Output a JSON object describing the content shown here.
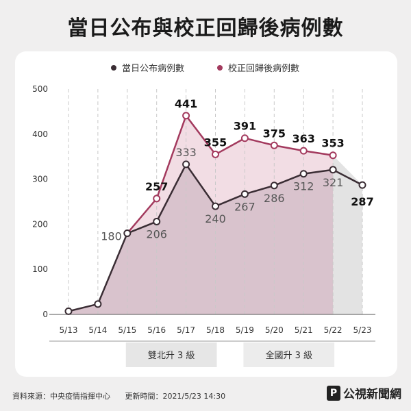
{
  "title": "當日公布與校正回歸後病例數",
  "footer": {
    "source": "資料來源：中央疫情指揮中心",
    "updated": "更新時間：2021/5/23 14:30"
  },
  "logo": {
    "mark": "P",
    "text": "公視新聞網"
  },
  "colors": {
    "daily": "#3a2d34",
    "revised": "#a33a5e",
    "daily_fill": "#d9c3cd",
    "revised_fill": "#f2dde4",
    "grey_band": "#e3e3e3"
  },
  "chart_data": {
    "type": "line",
    "x": [
      "5/13",
      "5/14",
      "5/15",
      "5/16",
      "5/17",
      "5/18",
      "5/19",
      "5/20",
      "5/21",
      "5/22",
      "5/23"
    ],
    "ylim": [
      0,
      500
    ],
    "yticks": [
      0,
      100,
      200,
      300,
      400,
      500
    ],
    "grid": "vertical-dashed",
    "legend_position": "top-right",
    "series": [
      {
        "name": "當日公布病例數",
        "values": [
          7,
          23,
          180,
          206,
          333,
          240,
          267,
          286,
          312,
          321,
          287
        ],
        "labels": [
          "",
          "",
          "180",
          "206",
          "333",
          "240",
          "267",
          "286",
          "312",
          "321",
          "287"
        ]
      },
      {
        "name": "校正回歸後病例數",
        "values": [
          null,
          null,
          null,
          257,
          441,
          355,
          391,
          375,
          363,
          353,
          null
        ],
        "labels": [
          "",
          "",
          "",
          "257",
          "441",
          "355",
          "391",
          "375",
          "363",
          "353",
          ""
        ]
      }
    ],
    "annotations": [
      {
        "text": "雙北升 3 級",
        "from": "5/15",
        "to": "5/18"
      },
      {
        "text": "全國升 3 級",
        "from": "5/19",
        "to": "5/22"
      }
    ]
  }
}
